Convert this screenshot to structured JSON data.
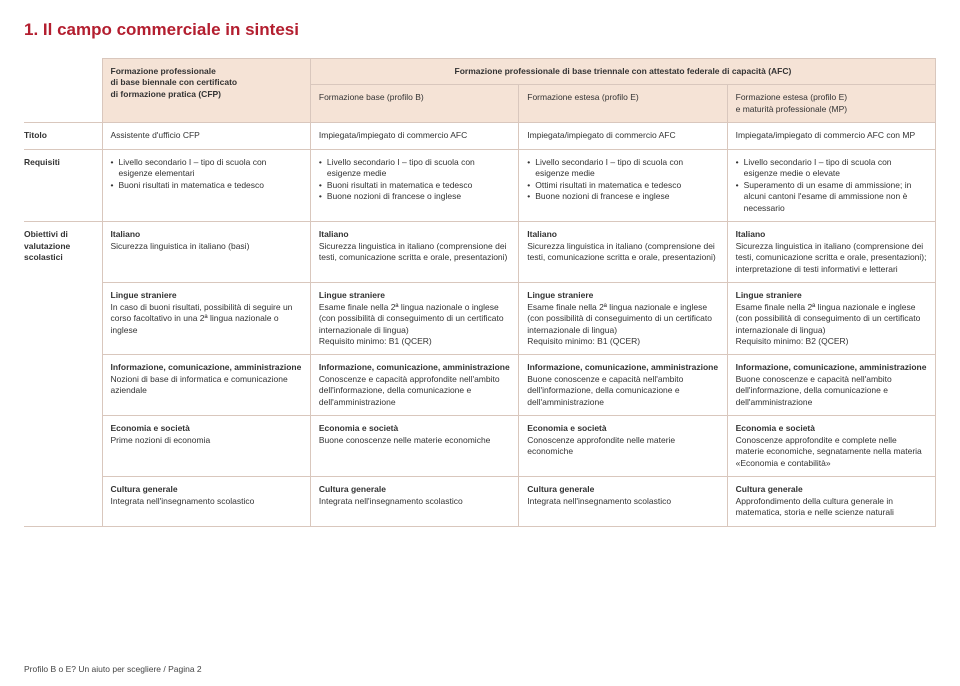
{
  "title": "1. Il campo commerciale in sintesi",
  "footer": "Profilo B o E? Un aiuto per scegliere / Pagina 2",
  "colors": {
    "accent": "#b31e2f",
    "header_bg": "#f5e3d6",
    "border": "#d9c7bd",
    "background": "#ffffff",
    "text": "#333333"
  },
  "headers": {
    "col1": "Formazione professionale\ndi base biennale con certificato\ndi formazione pratica (CFP)",
    "col_span": "Formazione professionale di base triennale con attestato federale di capacità (AFC)",
    "col2": "Formazione base (profilo B)",
    "col3": "Formazione estesa (profilo E)",
    "col4": "Formazione estesa (profilo E)\ne maturità professionale (MP)"
  },
  "row_labels": {
    "titolo": "Titolo",
    "requisiti": "Requisiti",
    "obiettivi": "Obiettivi di valutazione scolastici"
  },
  "titolo": {
    "c1": "Assistente d'ufficio CFP",
    "c2": "Impiegata/impiegato di commercio AFC",
    "c3": "Impiegata/impiegato di commercio AFC",
    "c4": "Impiegata/impiegato di commercio AFC con MP"
  },
  "requisiti": {
    "c1": [
      "Livello secondario I – tipo di scuola con esigenze elementari",
      "Buoni risultati in matematica e tedesco"
    ],
    "c2": [
      "Livello secondario I – tipo di scuola con esigenze medie",
      "Buoni risultati in matematica e tedesco",
      "Buone nozioni di francese o inglese"
    ],
    "c3": [
      "Livello secondario I – tipo di scuola con esigenze medie",
      "Ottimi risultati in matematica e tedesco",
      "Buone nozioni di francese e inglese"
    ],
    "c4": [
      "Livello secondario I – tipo di scuola con esigenze medie o elevate",
      "Superamento di un esame di ammissione; in alcuni cantoni l'esame di ammissione non è necessario"
    ]
  },
  "obiettivi": {
    "italiano": {
      "h": "Italiano",
      "c1": "Sicurezza linguistica in italiano (basi)",
      "c2": "Sicurezza linguistica in italiano (comprensione dei testi, comunicazione scritta e orale, presentazioni)",
      "c3": "Sicurezza linguistica in italiano (comprensione dei testi, comunicazione scritta e orale, presentazioni)",
      "c4": "Sicurezza linguistica in italiano (comprensione dei testi, comunicazione scritta e orale, presentazioni); interpretazione di testi informativi e letterari"
    },
    "lingue": {
      "h": "Lingue straniere",
      "c1": "In caso di buoni risultati, possibilità di seguire un corso facoltativo in una 2ª lingua nazionale o inglese",
      "c2": "Esame finale nella 2ª lingua nazionale o inglese (con possibilità di conseguimento di un certificato internazionale di lingua)\nRequisito minimo: B1 (QCER)",
      "c3": "Esame finale nella 2ª lingua nazionale e inglese (con possibilità di conseguimento di un certificato internazionale di lingua)\nRequisito minimo: B1 (QCER)",
      "c4": "Esame finale nella 2ª lingua nazionale e inglese (con possibilità di conseguimento di un certificato internazionale di lingua)\nRequisito minimo: B2 (QCER)"
    },
    "ica": {
      "h": "Informazione, comunicazione, amministrazione",
      "c1": "Nozioni di base di informatica e comunicazione aziendale",
      "c2": "Conoscenze e capacità approfondite nell'ambito dell'informazione, della comunicazione e dell'amministrazione",
      "c3": "Buone conoscenze e capacità nell'ambito dell'informazione, della comunicazione e dell'amministrazione",
      "c4": "Buone conoscenze e capacità nell'ambito dell'informazione, della comunicazione e dell'amministrazione"
    },
    "economia": {
      "h": "Economia e società",
      "c1": "Prime nozioni di economia",
      "c2": "Buone conoscenze nelle materie economiche",
      "c3": "Conoscenze approfondite nelle materie economiche",
      "c4": "Conoscenze approfondite e complete nelle materie economiche, segnatamente nella materia «Economia e contabilità»"
    },
    "cultura": {
      "h": "Cultura generale",
      "c1": "Integrata nell'insegnamento scolastico",
      "c2": "Integrata nell'insegnamento scolastico",
      "c3": "Integrata nell'insegnamento scolastico",
      "c4": "Approfondimento della cultura generale in matematica, storia e nelle scienze naturali"
    }
  }
}
